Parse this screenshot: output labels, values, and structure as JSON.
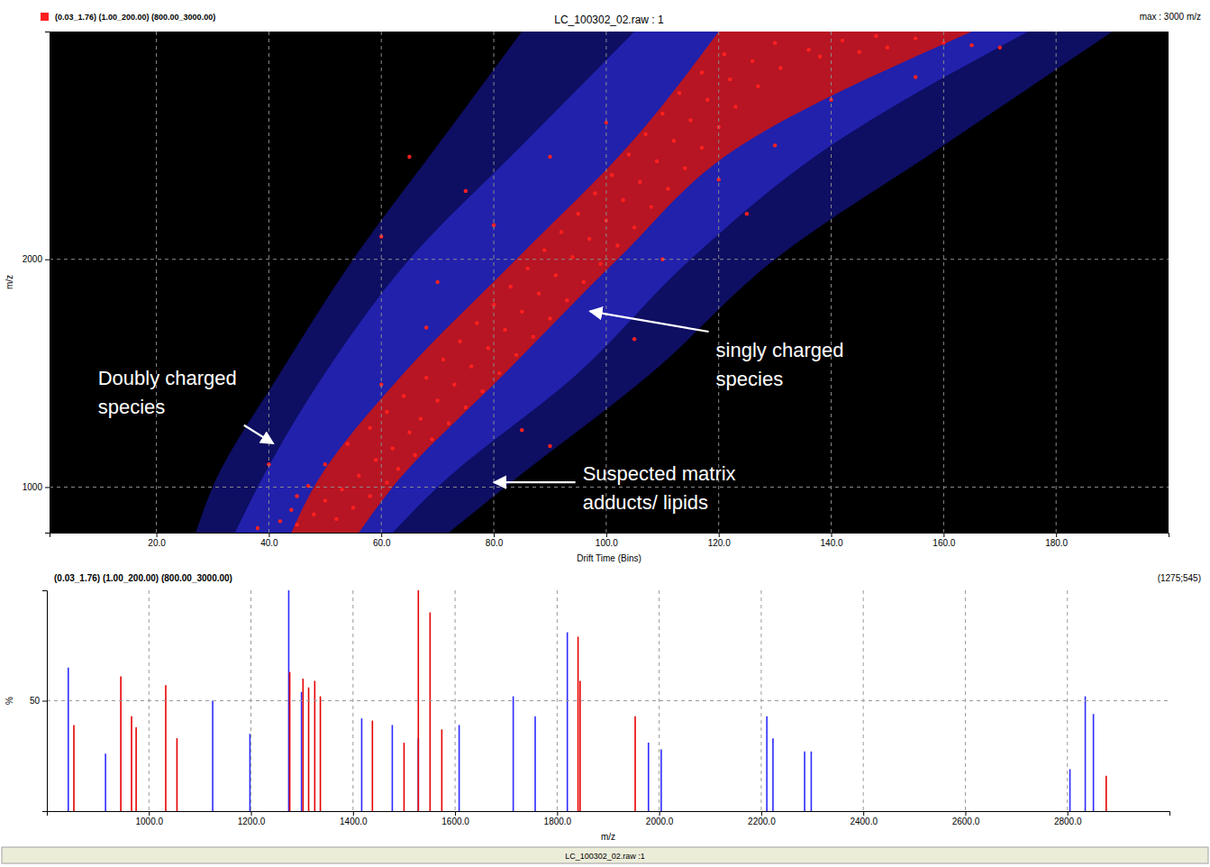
{
  "chart_data": [
    {
      "type": "scatter",
      "title": "LC_100302_02.raw : 1",
      "subtitle": "max : 3000 m/z",
      "x_label": "Drift Time (Bins)",
      "y_label": "m/z",
      "xlim": [
        1,
        200
      ],
      "ylim": [
        800,
        3000
      ],
      "xticks": [
        {
          "value": 20,
          "label": "20.0"
        },
        {
          "value": 40,
          "label": "40.0"
        },
        {
          "value": 60,
          "label": "60.0"
        },
        {
          "value": 80,
          "label": "80.0"
        },
        {
          "value": 100,
          "label": "100.0"
        },
        {
          "value": 120,
          "label": "120.0"
        },
        {
          "value": 140,
          "label": "140.0"
        },
        {
          "value": 160,
          "label": "160.0"
        },
        {
          "value": 180,
          "label": "180.0"
        }
      ],
      "yticks": [
        1000,
        2000
      ],
      "grid": true,
      "legend": "top-left",
      "series": [
        {
          "type": "area",
          "color": "#10106e",
          "values": [
            800,
            1000,
            1500,
            2000,
            2500,
            3000
          ],
          "x_low": [
            27,
            30,
            42,
            55,
            70,
            85
          ],
          "x_high": [
            72,
            82,
            108,
            130,
            160,
            190
          ]
        },
        {
          "type": "area",
          "color": "#2424b4",
          "values": [
            800,
            1000,
            1500,
            2000,
            2500,
            3000
          ],
          "x_low": [
            34,
            38,
            50,
            65,
            85,
            105
          ],
          "x_high": [
            62,
            70,
            95,
            115,
            140,
            175
          ]
        },
        {
          "type": "area",
          "color": "#c81414",
          "values": [
            800,
            1000,
            1500,
            2000,
            2500,
            3000
          ],
          "x_low": [
            44,
            48,
            64,
            84,
            104,
            120
          ],
          "x_high": [
            56,
            62,
            82,
            102,
            124,
            165
          ]
        },
        {
          "type": "scatter",
          "name": "(0.03_1.76) (1.00_200.00) (800.00_3000.00)",
          "color": "#ff2020",
          "marker": "circle",
          "x": [
            38,
            42,
            45,
            48,
            52,
            55,
            50,
            44,
            58,
            53,
            47,
            61,
            56,
            63,
            50,
            59,
            66,
            62,
            54,
            69,
            65,
            58,
            72,
            67,
            61,
            75,
            70,
            64,
            78,
            73,
            68,
            81,
            76,
            71,
            84,
            79,
            74,
            87,
            82,
            77,
            90,
            85,
            80,
            93,
            88,
            83,
            96,
            91,
            86,
            99,
            94,
            89,
            102,
            97,
            92,
            105,
            100,
            95,
            108,
            103,
            98,
            111,
            106,
            101,
            114,
            109,
            104,
            117,
            112,
            107,
            120,
            115,
            110,
            123,
            118,
            113,
            127,
            122,
            117,
            131,
            126,
            121,
            136,
            130,
            142,
            148,
            155,
            160,
            165,
            150,
            138,
            145,
            170,
            60,
            85,
            90,
            40,
            110,
            70,
            75,
            130,
            125,
            60,
            140,
            100,
            90,
            155,
            80,
            68,
            45,
            105,
            65,
            120
          ],
          "values": [
            820,
            850,
            835,
            880,
            860,
            910,
            940,
            900,
            960,
            990,
            1005,
            1020,
            1050,
            1080,
            1100,
            1120,
            1140,
            1170,
            1190,
            1210,
            1240,
            1260,
            1280,
            1300,
            1330,
            1350,
            1380,
            1400,
            1420,
            1450,
            1480,
            1500,
            1530,
            1560,
            1580,
            1610,
            1640,
            1660,
            1690,
            1720,
            1740,
            1770,
            1800,
            1820,
            1850,
            1880,
            1900,
            1930,
            1960,
            1980,
            2010,
            2040,
            2060,
            2090,
            2120,
            2140,
            2170,
            2200,
            2230,
            2260,
            2290,
            2310,
            2340,
            2370,
            2400,
            2430,
            2460,
            2490,
            2520,
            2550,
            2580,
            2610,
            2640,
            2670,
            2700,
            2730,
            2760,
            2790,
            2820,
            2840,
            2870,
            2900,
            2920,
            2950,
            2960,
            2980,
            2970,
            2950,
            2940,
            2930,
            2890,
            2910,
            2930,
            1450,
            1250,
            1180,
            1100,
            2000,
            1900,
            2300,
            2500,
            2200,
            2100,
            2700,
            2600,
            2450,
            2800,
            2150,
            1700,
            960,
            1650,
            2450,
            2350
          ]
        }
      ],
      "annotations": [
        {
          "text": "Doubly charged\nspecies",
          "xy": [
            40.8,
            1191
          ],
          "xytext": [
            9.6,
            1480
          ]
        },
        {
          "text": "singly charged\nspecies",
          "xy": [
            97.1,
            1772
          ],
          "xytext": [
            119.5,
            1602
          ]
        },
        {
          "text": "Suspected matrix\nadducts/ lipids",
          "xy": [
            80,
            1021
          ],
          "xytext": [
            95.8,
            1061
          ]
        }
      ]
    },
    {
      "type": "stem",
      "title": "(0.03_1.76) (1.00_200.00) (800.00_3000.00)",
      "subtitle": "(1275;545)",
      "x_label": "m/z",
      "y_label": "%",
      "xlim": [
        800,
        3000
      ],
      "ylim": [
        0,
        100
      ],
      "xticks": [
        {
          "value": 1000,
          "label": "1000.0"
        },
        {
          "value": 1200,
          "label": "1200.0"
        },
        {
          "value": 1400,
          "label": "1400.0"
        },
        {
          "value": 1600,
          "label": "1600.0"
        },
        {
          "value": 1800,
          "label": "1800.0"
        },
        {
          "value": 2000,
          "label": "2000.0"
        },
        {
          "value": 2200,
          "label": "2200.0"
        },
        {
          "value": 2400,
          "label": "2400.0"
        },
        {
          "value": 2600,
          "label": "2600.0"
        },
        {
          "value": 2800,
          "label": "2800.0"
        }
      ],
      "yticks": [
        50
      ],
      "grid": true,
      "series": [
        {
          "color": "#2b2bff",
          "x": [
            842,
            915,
            1125,
            1198,
            1274,
            1299,
            1417,
            1477,
            1528,
            1608,
            1714,
            1757,
            1820,
            1979,
            2004,
            2211,
            2223,
            2285,
            2298,
            2805,
            2835,
            2851
          ],
          "values": [
            65,
            26,
            50,
            35,
            100,
            54,
            42,
            39,
            33,
            39,
            52,
            43,
            81,
            31,
            28,
            43,
            33,
            27,
            27,
            19,
            52,
            44
          ]
        },
        {
          "color": "#e60000",
          "x": [
            853,
            945,
            966,
            975,
            1033,
            1055,
            1276,
            1302,
            1313,
            1325,
            1336,
            1438,
            1500,
            1528,
            1551,
            1574,
            1841,
            1845,
            1953,
            2876
          ],
          "values": [
            39,
            61,
            43,
            38,
            57,
            33,
            63,
            60,
            56,
            59,
            52,
            41,
            31,
            100,
            90,
            37,
            79,
            59,
            43,
            16
          ]
        }
      ]
    }
  ],
  "footer": "LC_100302_02.raw :1"
}
